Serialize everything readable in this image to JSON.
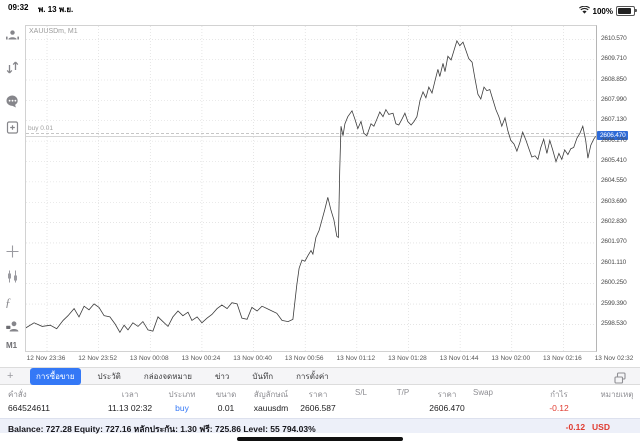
{
  "status_bar": {
    "time": "09:32",
    "date": "พ. 13 พ.ย.",
    "battery": "100%"
  },
  "sidebar": {
    "icons": [
      "account-icon",
      "orders-arrows-icon",
      "chat-icon",
      "new-order-icon",
      "crosshair-icon",
      "indicators-icon",
      "function-icon",
      "objects-icon"
    ],
    "timeframe": "M1",
    "add_label": "+"
  },
  "chart": {
    "symbol_label": "XAUUSDm, M1",
    "current_price": "2606.470",
    "buy_line_label": "buy 0.01"
  },
  "chart_data": {
    "type": "line",
    "title": "XAUUSDm, M1",
    "x_axis_labels": [
      "12 Nov 23:36",
      "12 Nov 23:52",
      "13 Nov 00:08",
      "13 Nov 00:24",
      "13 Nov 00:40",
      "13 Nov 00:56",
      "13 Nov 01:12",
      "13 Nov 01:28",
      "13 Nov 01:44",
      "13 Nov 02:00",
      "13 Nov 02:16",
      "13 Nov 02:32"
    ],
    "y_axis_labels": [
      "2610.570",
      "2609.710",
      "2608.850",
      "2607.990",
      "2607.130",
      "2606.270",
      "2605.410",
      "2604.550",
      "2603.690",
      "2602.830",
      "2601.970",
      "2601.110",
      "2600.250",
      "2599.390",
      "2598.530"
    ],
    "y_top": 2611.13,
    "y_bottom": 2597.41,
    "minutes_per_gridline": 16,
    "grid": true,
    "buy_order": {
      "price": 2606.587,
      "label": "buy 0.01"
    },
    "bid_price": 2606.47,
    "points": [
      [
        -7,
        2598.35
      ],
      [
        -4,
        2598.6
      ],
      [
        -1.5,
        2598.45
      ],
      [
        1,
        2598.5
      ],
      [
        3,
        2598.35
      ],
      [
        5,
        2598.7
      ],
      [
        6.5,
        2598.9
      ],
      [
        8.4,
        2599.2
      ],
      [
        9.9,
        2598.85
      ],
      [
        11.5,
        2599.3
      ],
      [
        13,
        2599.15
      ],
      [
        14.6,
        2599.4
      ],
      [
        16.1,
        2599.25
      ],
      [
        17.7,
        2598.9
      ],
      [
        19.5,
        2598.85
      ],
      [
        21.1,
        2598.55
      ],
      [
        22.6,
        2598.2
      ],
      [
        23.9,
        2598.5
      ],
      [
        25.1,
        2598.3
      ],
      [
        26.6,
        2598.6
      ],
      [
        28.2,
        2598.45
      ],
      [
        29.7,
        2598.65
      ],
      [
        31.3,
        2598.3
      ],
      [
        32.8,
        2598.25
      ],
      [
        34.4,
        2598.85
      ],
      [
        35.9,
        2598.65
      ],
      [
        37.5,
        2598.45
      ],
      [
        39,
        2598.85
      ],
      [
        40.6,
        2599.1
      ],
      [
        42.1,
        2598.9
      ],
      [
        43.7,
        2599.05
      ],
      [
        44.9,
        2598.7
      ],
      [
        46.5,
        2598.85
      ],
      [
        48,
        2598.6
      ],
      [
        49.6,
        2598.8
      ],
      [
        51.1,
        2598.95
      ],
      [
        52.7,
        2599.2
      ],
      [
        54.2,
        2599.35
      ],
      [
        55.8,
        2599.2
      ],
      [
        57.3,
        2599.45
      ],
      [
        58.9,
        2599.4
      ],
      [
        60.4,
        2598.8
      ],
      [
        62,
        2598.75
      ],
      [
        63.5,
        2599.25
      ],
      [
        65.1,
        2599.1
      ],
      [
        66.6,
        2599.3
      ],
      [
        68.2,
        2599.2
      ],
      [
        69.7,
        2599.1
      ],
      [
        71.2,
        2599.0
      ],
      [
        72.8,
        2598.7
      ],
      [
        74.7,
        2598.65
      ],
      [
        76.2,
        2598.75
      ],
      [
        77.4,
        2600.2
      ],
      [
        78.1,
        2600.9
      ],
      [
        79,
        2601.25
      ],
      [
        79.9,
        2601.2
      ],
      [
        80.9,
        2601.45
      ],
      [
        81.8,
        2601.65
      ],
      [
        82.4,
        2601.5
      ],
      [
        83.3,
        2602.2
      ],
      [
        84.3,
        2602.5
      ],
      [
        85.2,
        2602.95
      ],
      [
        86.1,
        2603.4
      ],
      [
        87,
        2603.9
      ],
      [
        88,
        2603.35
      ],
      [
        88.9,
        2602.95
      ],
      [
        89.8,
        2602.25
      ],
      [
        90.3,
        2602.2
      ],
      [
        90.7,
        2605.0
      ],
      [
        91.1,
        2606.9
      ],
      [
        91.7,
        2606.5
      ],
      [
        92.3,
        2607.0
      ],
      [
        93.2,
        2607.3
      ],
      [
        94.5,
        2607.55
      ],
      [
        95.4,
        2607.2
      ],
      [
        96.3,
        2606.8
      ],
      [
        97.3,
        2607.1
      ],
      [
        98.2,
        2606.6
      ],
      [
        99.1,
        2606.5
      ],
      [
        100.4,
        2607.0
      ],
      [
        101.3,
        2606.9
      ],
      [
        102.2,
        2607.2
      ],
      [
        103.1,
        2607.5
      ],
      [
        104.1,
        2607.3
      ],
      [
        105,
        2607.6
      ],
      [
        105.9,
        2607.4
      ],
      [
        107.2,
        2607.45
      ],
      [
        108.1,
        2607.0
      ],
      [
        109,
        2606.95
      ],
      [
        110,
        2607.2
      ],
      [
        110.9,
        2607.45
      ],
      [
        111.8,
        2607.1
      ],
      [
        112.8,
        2606.95
      ],
      [
        113.7,
        2607.1
      ],
      [
        114.6,
        2607.3
      ],
      [
        115.6,
        2608.0
      ],
      [
        116.5,
        2608.35
      ],
      [
        117.4,
        2608.1
      ],
      [
        118.3,
        2608.55
      ],
      [
        119.3,
        2608.3
      ],
      [
        120.2,
        2608.8
      ],
      [
        121.1,
        2609.3
      ],
      [
        121.7,
        2609.0
      ],
      [
        122.7,
        2609.55
      ],
      [
        123.3,
        2609.2
      ],
      [
        124.2,
        2609.85
      ],
      [
        125.2,
        2609.7
      ],
      [
        126.1,
        2610.1
      ],
      [
        127,
        2610.5
      ],
      [
        127.9,
        2610.3
      ],
      [
        128.9,
        2610.45
      ],
      [
        129.8,
        2610.1
      ],
      [
        130.7,
        2609.75
      ],
      [
        131.7,
        2609.6
      ],
      [
        132.6,
        2608.9
      ],
      [
        133.5,
        2608.25
      ],
      [
        134.4,
        2608.05
      ],
      [
        135.4,
        2608.55
      ],
      [
        136.3,
        2608.4
      ],
      [
        137.2,
        2608.45
      ],
      [
        138.2,
        2608.0
      ],
      [
        139.1,
        2607.6
      ],
      [
        140,
        2607.3
      ],
      [
        140.9,
        2606.9
      ],
      [
        141.9,
        2607.25
      ],
      [
        142.8,
        2606.7
      ],
      [
        143.7,
        2606.3
      ],
      [
        144.7,
        2606.15
      ],
      [
        145.6,
        2605.85
      ],
      [
        146.5,
        2606.2
      ],
      [
        147.4,
        2606.65
      ],
      [
        148.4,
        2606.3
      ],
      [
        149.3,
        2605.95
      ],
      [
        150.2,
        2605.6
      ],
      [
        151.2,
        2605.65
      ],
      [
        152.1,
        2605.5
      ],
      [
        153,
        2606.0
      ],
      [
        153.9,
        2606.35
      ],
      [
        154.9,
        2605.75
      ],
      [
        155.8,
        2606.3
      ],
      [
        156.7,
        2605.9
      ],
      [
        157.7,
        2605.4
      ],
      [
        158.6,
        2605.75
      ],
      [
        159.5,
        2605.5
      ],
      [
        160.4,
        2605.9
      ],
      [
        161.4,
        2605.7
      ],
      [
        162.3,
        2605.95
      ],
      [
        163.2,
        2606.0
      ],
      [
        164.2,
        2606.4
      ],
      [
        165.1,
        2606.6
      ],
      [
        166,
        2606.9
      ],
      [
        166.9,
        2606.3
      ],
      [
        167.6,
        2605.55
      ],
      [
        168.5,
        2606.1
      ],
      [
        169.4,
        2606.35
      ],
      [
        170,
        2606.47
      ]
    ]
  },
  "tabs": {
    "add_label": "+",
    "items": [
      {
        "label": "การซื้อขาย",
        "selected": true
      },
      {
        "label": "ประวัติ",
        "selected": false
      },
      {
        "label": "กล่องจดหมาย",
        "selected": false
      },
      {
        "label": "ข่าว",
        "selected": false
      },
      {
        "label": "บันทึก",
        "selected": false
      },
      {
        "label": "การตั้งค่า",
        "selected": false
      }
    ]
  },
  "table": {
    "headers": {
      "order": "คำสั่ง",
      "time": "เวลา",
      "type": "ประเภท",
      "size": "ขนาด",
      "symbol": "สัญลักษณ์",
      "price": "ราคา",
      "sl": "S/L",
      "tp": "T/P",
      "price2": "ราคา",
      "swap": "Swap",
      "profit": "กำไร",
      "note": "หมายเหตุ"
    },
    "row": {
      "order": "664524611",
      "time": "11.13 02:32",
      "type": "buy",
      "size": "0.01",
      "symbol": "xauusdm",
      "price": "2606.587",
      "sl": "",
      "tp": "",
      "price2": "2606.470",
      "swap": "",
      "profit": "-0.12",
      "note": ""
    }
  },
  "footer": {
    "balance_line": "Balance: 727.28 Equity: 727.16 หลักประกัน: 1.30 ฟรี: 725.86 Level: 55 794.03%",
    "profit": "-0.12",
    "currency": "USD"
  },
  "colors": {
    "accent_blue": "#3478f6",
    "badge_blue": "#2e6bd8",
    "loss_red": "#e03b30",
    "grid_gray": "#d6d6d6",
    "line_gray": "#3d3d3d"
  }
}
